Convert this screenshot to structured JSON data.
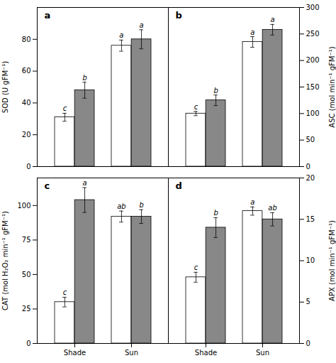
{
  "chart_data": [
    {
      "type": "bar",
      "title": "a",
      "ylabel": "SOD (U gFM⁻¹)",
      "categories": [
        "Shade",
        "Sun"
      ],
      "series": [
        {
          "color": "#ffffff",
          "values": [
            31.0,
            76.0
          ],
          "errors": [
            2.5,
            3.5
          ],
          "labels": [
            "c",
            "a"
          ]
        },
        {
          "color": "#888888",
          "values": [
            48.0,
            80.0
          ],
          "errors": [
            5.0,
            6.0
          ],
          "labels": [
            "b",
            "a"
          ]
        }
      ],
      "ylim": [
        0,
        100
      ],
      "yticks": [
        0,
        20,
        40,
        60,
        80
      ],
      "tick_labels": "y"
    },
    {
      "type": "bar",
      "title": "b",
      "ylabel": "ASC (mol min⁻¹ gFM⁻¹)",
      "categories": [
        "Shade",
        "Sun"
      ],
      "series": [
        {
          "color": "#ffffff",
          "values": [
            100.0,
            235.0
          ],
          "errors": [
            4.0,
            10.0
          ],
          "labels": [
            "c",
            "a"
          ]
        },
        {
          "color": "#888888",
          "values": [
            125.0,
            258.0
          ],
          "errors": [
            10.0,
            10.0
          ],
          "labels": [
            "b",
            "a"
          ]
        }
      ],
      "ylim": [
        0,
        300
      ],
      "yticks": [
        0,
        50,
        100,
        150,
        200,
        250,
        300
      ],
      "tick_labels": "y"
    },
    {
      "type": "bar",
      "title": "c",
      "ylabel": "CAT (mol H₂O₂ min⁻¹ gFM⁻¹)",
      "categories": [
        "Shade",
        "Sun"
      ],
      "series": [
        {
          "color": "#ffffff",
          "values": [
            30.0,
            92.0
          ],
          "errors": [
            3.5,
            4.0
          ],
          "labels": [
            "c",
            "ab"
          ]
        },
        {
          "color": "#888888",
          "values": [
            104.0,
            92.0
          ],
          "errors": [
            9.0,
            5.0
          ],
          "labels": [
            "a",
            "b"
          ]
        }
      ],
      "ylim": [
        0,
        120
      ],
      "yticks": [
        0,
        25,
        50,
        75,
        100
      ]
    },
    {
      "type": "bar",
      "title": "d",
      "ylabel": "APX (mol min⁻¹ gFM⁻¹)",
      "categories": [
        "Shade",
        "Sun"
      ],
      "series": [
        {
          "color": "#ffffff",
          "values": [
            8.0,
            16.0
          ],
          "errors": [
            0.6,
            0.5
          ],
          "labels": [
            "c",
            "a"
          ]
        },
        {
          "color": "#888888",
          "values": [
            14.0,
            15.0
          ],
          "errors": [
            1.2,
            0.8
          ],
          "labels": [
            "b",
            "ab"
          ]
        }
      ],
      "ylim": [
        0,
        20
      ],
      "yticks": [
        0,
        5,
        10,
        15,
        20
      ]
    }
  ]
}
